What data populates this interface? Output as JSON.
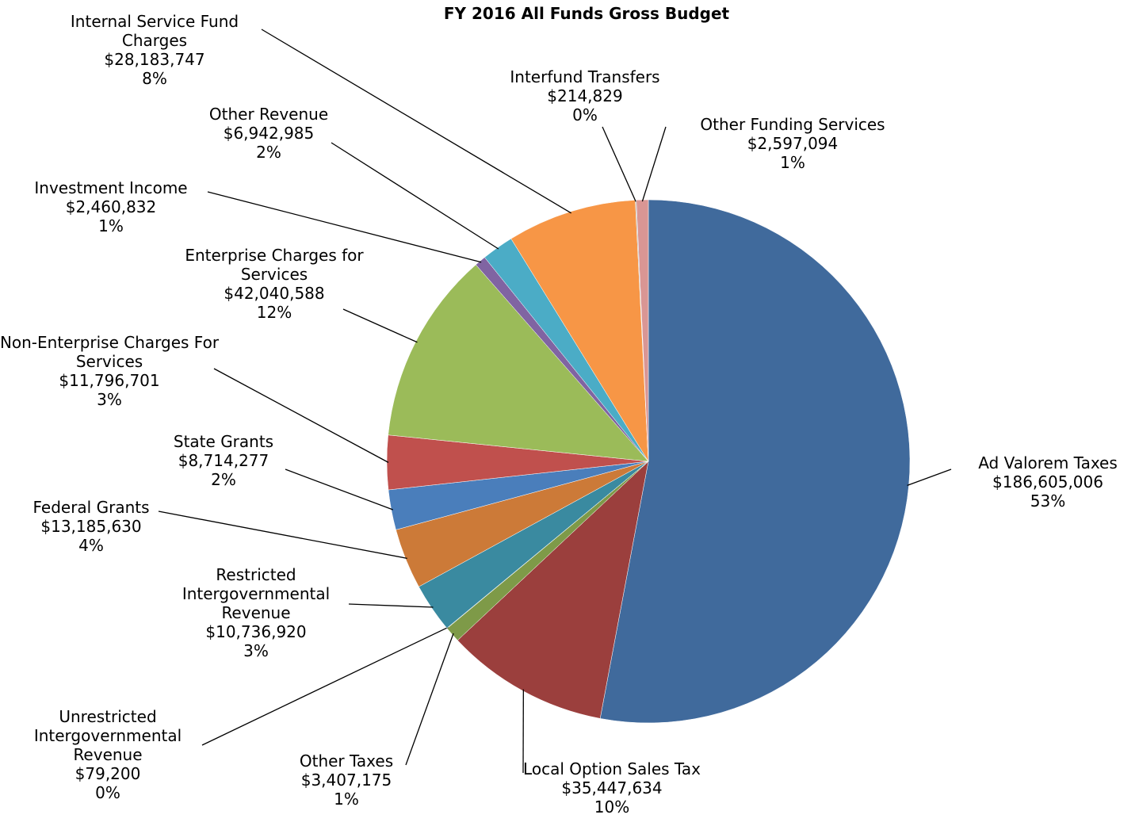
{
  "chart_data": {
    "type": "pie",
    "title": "FY 2016 All Funds Gross Budget",
    "categories": [
      "Ad Valorem Taxes",
      "Local Option Sales Tax",
      "Other Taxes",
      "Unrestricted Intergovernmental Revenue",
      "Restricted Intergovernmental Revenue",
      "Federal Grants",
      "State Grants",
      "Non-Enterprise Charges For Services",
      "Enterprise Charges for Services",
      "Investment Income",
      "Other Revenue",
      "Internal Service Fund Charges",
      "Interfund Transfers",
      "Other Funding Services"
    ],
    "values": [
      186605006,
      35447634,
      3407175,
      79200,
      10736920,
      13185630,
      8714277,
      11796701,
      42040588,
      2460832,
      6942985,
      28183747,
      214829,
      2597094
    ],
    "value_labels": [
      "$186,605,006",
      "$35,447,634",
      "$3,407,175",
      "$79,200",
      "$10,736,920",
      "$13,185,630",
      "$8,714,277",
      "$11,796,701",
      "$42,040,588",
      "$2,460,832",
      "$6,942,985",
      "$28,183,747",
      "$214,829",
      "$2,597,094"
    ],
    "percent_labels": [
      "53%",
      "10%",
      "1%",
      "0%",
      "3%",
      "4%",
      "2%",
      "3%",
      "12%",
      "1%",
      "2%",
      "8%",
      "0%",
      "1%"
    ],
    "colors": [
      "#406a9c",
      "#9b3f3d",
      "#7e9a48",
      "#6b8a3a",
      "#3a8aa0",
      "#cc7a38",
      "#4a7ebb",
      "#c0504d",
      "#9bbb59",
      "#8064a2",
      "#4bacc6",
      "#f79646",
      "#b0b0b0",
      "#d99694"
    ]
  }
}
